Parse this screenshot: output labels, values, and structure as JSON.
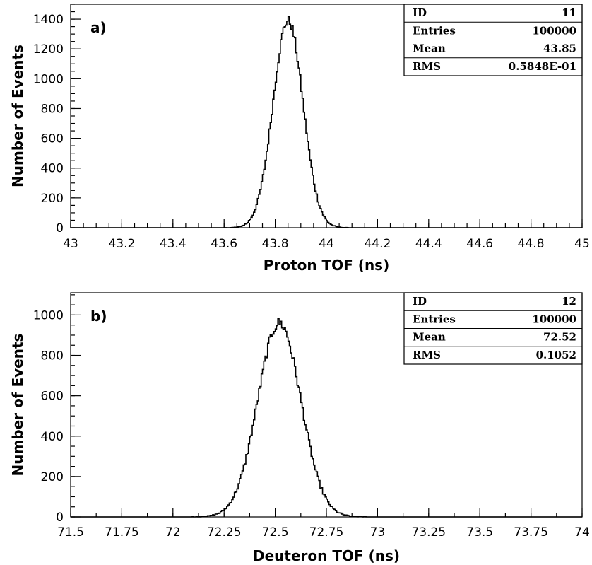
{
  "chart_data": [
    {
      "type": "histogram",
      "panel_label": "a)",
      "xlabel": "Proton TOF (ns)",
      "ylabel": "Number of Events",
      "xlim": [
        43,
        45
      ],
      "ylim": [
        0,
        1500
      ],
      "x_ticks": [
        43,
        43.2,
        43.4,
        43.6,
        43.8,
        44,
        44.2,
        44.4,
        44.6,
        44.8,
        45
      ],
      "x_tick_labels": [
        "43",
        "43.2",
        "43.4",
        "43.6",
        "43.8",
        "44",
        "44.2",
        "44.4",
        "44.6",
        "44.8",
        "45"
      ],
      "y_ticks": [
        0,
        200,
        400,
        600,
        800,
        1000,
        1200,
        1400
      ],
      "y_tick_labels": [
        "0",
        "200",
        "400",
        "600",
        "800",
        "1000",
        "1200",
        "1400"
      ],
      "x_minor_step": 0.05,
      "y_minor_step": 50,
      "peak": {
        "x": 43.85,
        "y": 1390
      },
      "stats": [
        {
          "label": "ID",
          "value": "11"
        },
        {
          "label": "Entries",
          "value": "100000"
        },
        {
          "label": "Mean",
          "value": "43.85"
        },
        {
          "label": "RMS",
          "value": "0.5848E-01"
        }
      ]
    },
    {
      "type": "histogram",
      "panel_label": "b)",
      "xlabel": "Deuteron TOF (ns)",
      "ylabel": "Number of Events",
      "xlim": [
        71.5,
        74
      ],
      "ylim": [
        0,
        1110
      ],
      "x_ticks": [
        71.5,
        71.75,
        72,
        72.25,
        72.5,
        72.75,
        73,
        73.25,
        73.5,
        73.75,
        74
      ],
      "x_tick_labels": [
        "71.5",
        "71.75",
        "72",
        "72.25",
        "72.5",
        "72.75",
        "73",
        "73.25",
        "73.5",
        "73.75",
        "74"
      ],
      "y_ticks": [
        0,
        200,
        400,
        600,
        800,
        1000
      ],
      "y_tick_labels": [
        "0",
        "200",
        "400",
        "600",
        "800",
        "1000"
      ],
      "x_minor_step": 0.125,
      "y_minor_step": 50,
      "peak": {
        "x": 72.52,
        "y": 960
      },
      "stats": [
        {
          "label": "ID",
          "value": "12"
        },
        {
          "label": "Entries",
          "value": "100000"
        },
        {
          "label": "Mean",
          "value": "72.52"
        },
        {
          "label": "RMS",
          "value": "0.1052"
        }
      ]
    }
  ]
}
